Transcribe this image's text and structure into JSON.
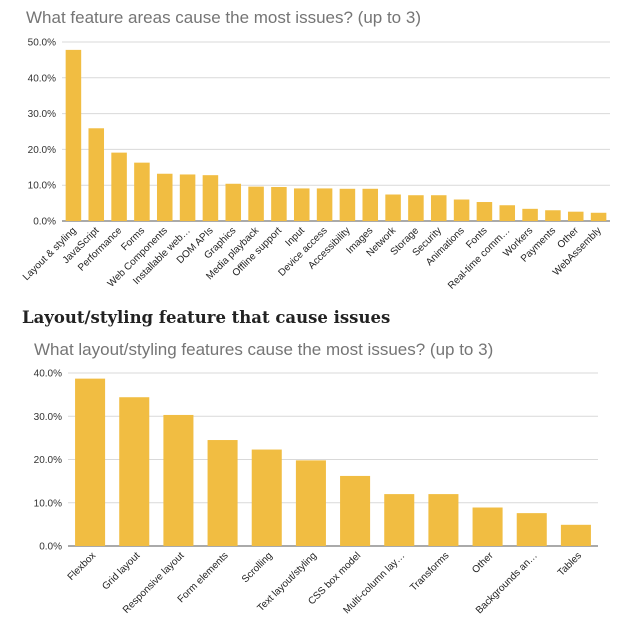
{
  "accent_color": "#F1BD42",
  "section_heading": "Layout/styling feature that cause issues",
  "chart_data": [
    {
      "type": "bar",
      "title": "What feature areas cause the most issues? (up to 3)",
      "xlabel": "",
      "ylabel": "",
      "ylim": [
        0,
        50
      ],
      "yticks": [
        "0.0%",
        "10.0%",
        "20.0%",
        "30.0%",
        "40.0%",
        "50.0%"
      ],
      "grid": true,
      "bar_color": "#F1BD42",
      "categories": [
        "Layout & styling",
        "JavaScript",
        "Performance",
        "Forms",
        "Web Components",
        "Installable web…",
        "DOM APIs",
        "Graphics",
        "Media playback",
        "Offline support",
        "Input",
        "Device access",
        "Accessibility",
        "Images",
        "Network",
        "Storage",
        "Security",
        "Animations",
        "Fonts",
        "Real-time comm…",
        "Workers",
        "Payments",
        "Other",
        "WebAssembly"
      ],
      "values": [
        47.8,
        25.9,
        19.1,
        16.3,
        13.2,
        13.0,
        12.8,
        10.4,
        9.6,
        9.5,
        9.1,
        9.1,
        9.0,
        9.0,
        7.4,
        7.2,
        7.2,
        6.0,
        5.3,
        4.4,
        3.4,
        3.0,
        2.6,
        2.3
      ]
    },
    {
      "type": "bar",
      "title": "What layout/styling features cause the most issues? (up to 3)",
      "xlabel": "",
      "ylabel": "",
      "ylim": [
        0,
        40
      ],
      "yticks": [
        "0.0%",
        "10.0%",
        "20.0%",
        "30.0%",
        "40.0%"
      ],
      "grid": true,
      "bar_color": "#F1BD42",
      "categories": [
        "Flexbox",
        "Grid layout",
        "Responsive layout",
        "Form elements",
        "Scrolling",
        "Text layout/styling",
        "CSS box model",
        "Multi-column lay…",
        "Transforms",
        "Other",
        "Backgrounds an…",
        "Tables"
      ],
      "values": [
        38.7,
        34.4,
        30.3,
        24.5,
        22.3,
        19.8,
        16.2,
        12.0,
        12.0,
        8.9,
        7.6,
        4.9
      ]
    }
  ]
}
